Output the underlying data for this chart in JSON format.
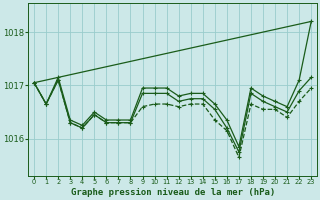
{
  "title": "Graphe pression niveau de la mer (hPa)",
  "bg_color": "#cce8e8",
  "grid_color": "#99cccc",
  "line_color": "#1a5c1a",
  "x_labels": [
    "0",
    "1",
    "2",
    "3",
    "4",
    "5",
    "6",
    "7",
    "8",
    "9",
    "10",
    "11",
    "12",
    "13",
    "14",
    "15",
    "16",
    "17",
    "18",
    "19",
    "20",
    "21",
    "22",
    "23"
  ],
  "yticks": [
    1016,
    1017,
    1018
  ],
  "ylim": [
    1015.3,
    1018.55
  ],
  "xlim": [
    -0.5,
    23.5
  ],
  "series_trend": [
    1017.05,
    1017.1,
    1017.15,
    1017.2,
    1017.25,
    1017.3,
    1017.35,
    1017.4,
    1017.45,
    1017.5,
    1017.55,
    1017.6,
    1017.65,
    1017.7,
    1017.75,
    1017.8,
    1017.85,
    1017.9,
    1017.95,
    1018.0,
    1018.05,
    1018.1,
    1018.15,
    1018.2
  ],
  "series_upper": [
    1017.05,
    1016.65,
    1017.15,
    1016.35,
    1016.25,
    1016.5,
    1016.35,
    1016.35,
    1016.35,
    1016.95,
    1016.95,
    1016.95,
    1016.8,
    1016.85,
    1016.85,
    1016.65,
    1016.35,
    1015.85,
    1016.95,
    1016.8,
    1016.7,
    1016.6,
    1017.1,
    1018.2
  ],
  "series_mid1": [
    1017.05,
    1016.65,
    1017.1,
    1016.3,
    1016.2,
    1016.45,
    1016.3,
    1016.3,
    1016.3,
    1016.85,
    1016.85,
    1016.85,
    1016.7,
    1016.75,
    1016.75,
    1016.55,
    1016.2,
    1015.75,
    1016.85,
    1016.7,
    1016.6,
    1016.5,
    1016.9,
    1017.15
  ],
  "series_lower": [
    1017.05,
    1016.65,
    1017.1,
    1016.3,
    1016.2,
    1016.45,
    1016.3,
    1016.3,
    1016.3,
    1016.6,
    1016.65,
    1016.65,
    1016.6,
    1016.65,
    1016.65,
    1016.35,
    1016.15,
    1015.65,
    1016.65,
    1016.55,
    1016.55,
    1016.4,
    1016.7,
    1016.95
  ]
}
